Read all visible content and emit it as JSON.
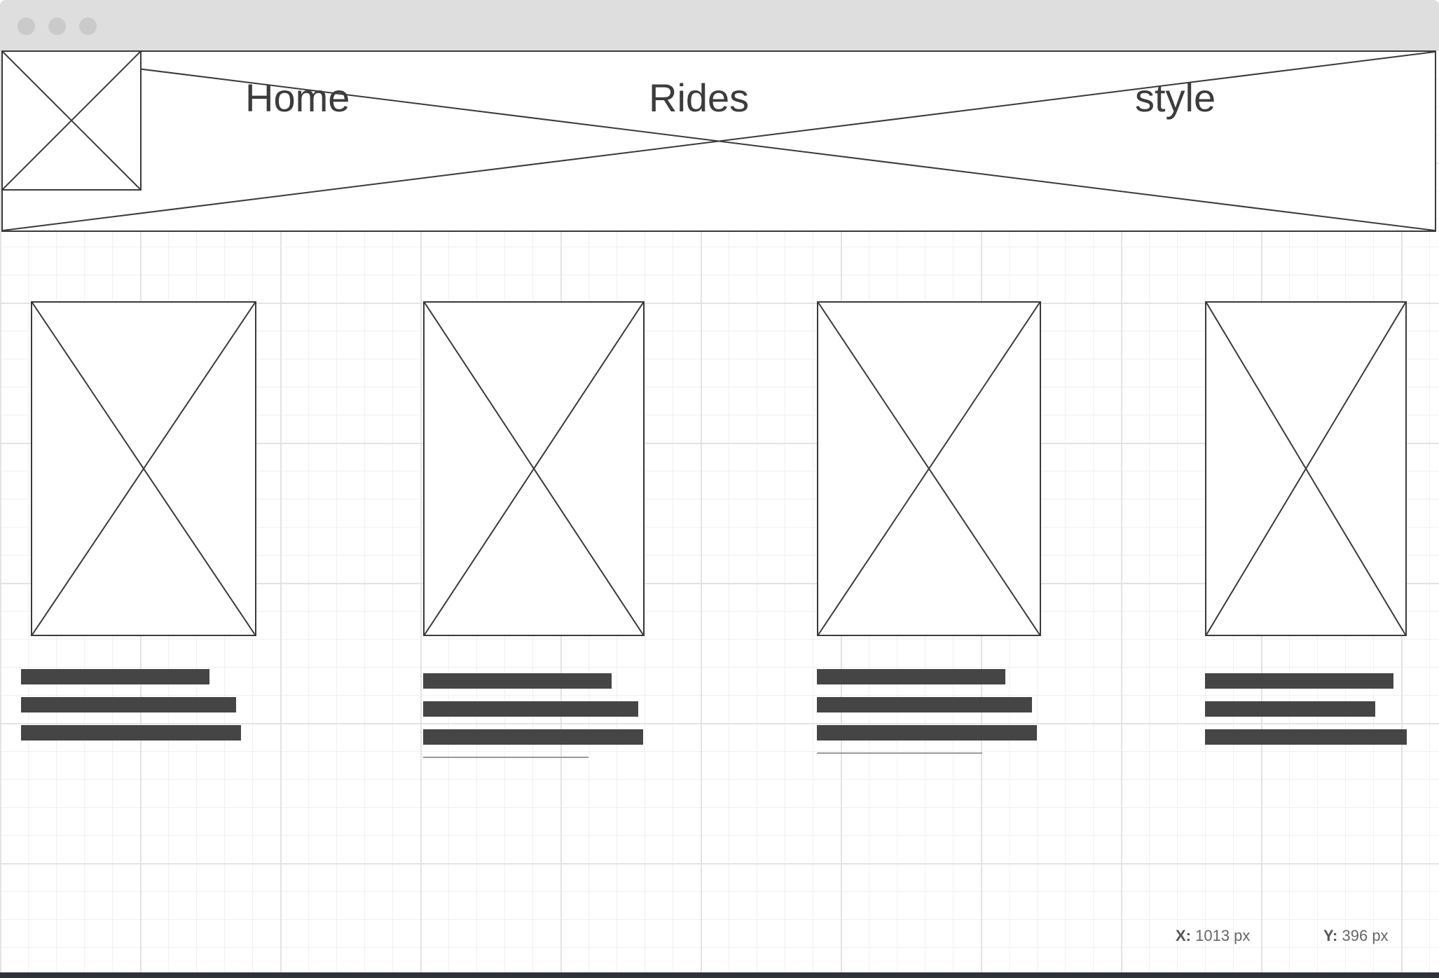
{
  "window": {
    "controls": [
      "close-dot",
      "minimize-dot",
      "zoom-dot"
    ]
  },
  "header": {
    "logo_icon": "image-placeholder",
    "banner_icon": "image-placeholder",
    "nav": [
      {
        "label": "Home"
      },
      {
        "label": "Rides"
      },
      {
        "label": "style"
      }
    ]
  },
  "cards": [
    {
      "image_icon": "image-placeholder",
      "text_lines": 3
    },
    {
      "image_icon": "image-placeholder",
      "text_lines": 3
    },
    {
      "image_icon": "image-placeholder",
      "text_lines": 3
    },
    {
      "image_icon": "image-placeholder",
      "text_lines": 3
    }
  ],
  "coords": {
    "x_label": "X:",
    "x_value": "1013 px",
    "y_label": "Y:",
    "y_value": "396 px"
  },
  "colors": {
    "titlebar": "#dedede",
    "wireframe_stroke": "#3a3a3a",
    "text_bar": "#454545",
    "grid_major": "#e3e3e3",
    "grid_minor": "#f0f0f0"
  }
}
